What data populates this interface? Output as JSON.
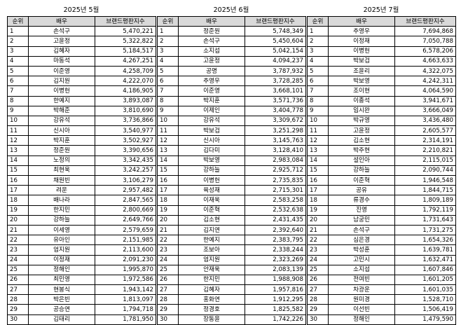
{
  "headers": {
    "rank": "순위",
    "actor": "배우",
    "score": "브랜드평판지수"
  },
  "months": [
    {
      "title": "2025년 5월",
      "rows": [
        [
          "1",
          "손석구",
          "5,470,221"
        ],
        [
          "2",
          "고윤정",
          "5,322,822"
        ],
        [
          "3",
          "김혜자",
          "5,184,517"
        ],
        [
          "4",
          "마동석",
          "4,267,251"
        ],
        [
          "5",
          "이준영",
          "4,258,709"
        ],
        [
          "6",
          "김지원",
          "4,222,070"
        ],
        [
          "7",
          "이병헌",
          "4,186,905"
        ],
        [
          "8",
          "한예지",
          "3,893,087"
        ],
        [
          "9",
          "박해준",
          "3,810,690"
        ],
        [
          "10",
          "강유석",
          "3,736,866"
        ],
        [
          "11",
          "신시아",
          "3,540,977"
        ],
        [
          "12",
          "박지훈",
          "3,502,927"
        ],
        [
          "13",
          "정준원",
          "3,390,656"
        ],
        [
          "14",
          "노정의",
          "3,342,435"
        ],
        [
          "15",
          "최현욱",
          "3,242,257"
        ],
        [
          "16",
          "채원빈",
          "3,106,279"
        ],
        [
          "17",
          "려운",
          "2,957,482"
        ],
        [
          "18",
          "배나라",
          "2,847,565"
        ],
        [
          "19",
          "한지민",
          "2,800,669"
        ],
        [
          "20",
          "강하늘",
          "2,649,766"
        ],
        [
          "21",
          "이세영",
          "2,579,659"
        ],
        [
          "22",
          "유아인",
          "2,151,985"
        ],
        [
          "23",
          "엄지원",
          "2,113,600"
        ],
        [
          "24",
          "이정재",
          "2,091,230"
        ],
        [
          "25",
          "정해인",
          "1,995,870"
        ],
        [
          "26",
          "최민영",
          "1,972,586"
        ],
        [
          "27",
          "현봉식",
          "1,943,142"
        ],
        [
          "28",
          "박은빈",
          "1,813,097"
        ],
        [
          "29",
          "공승연",
          "1,794,718"
        ],
        [
          "30",
          "김태리",
          "1,781,950"
        ]
      ]
    },
    {
      "title": "2025년 6월",
      "rows": [
        [
          "1",
          "정준원",
          "5,748,349"
        ],
        [
          "2",
          "손석구",
          "5,450,604"
        ],
        [
          "3",
          "소지섭",
          "5,042,154"
        ],
        [
          "4",
          "고윤정",
          "4,094,237"
        ],
        [
          "5",
          "공명",
          "3,787,932"
        ],
        [
          "6",
          "추영우",
          "3,728,285"
        ],
        [
          "7",
          "이준영",
          "3,668,101"
        ],
        [
          "8",
          "박지훈",
          "3,571,736"
        ],
        [
          "9",
          "이제인",
          "3,404,778"
        ],
        [
          "10",
          "강유석",
          "3,309,672"
        ],
        [
          "11",
          "박보검",
          "3,251,298"
        ],
        [
          "12",
          "신시아",
          "3,145,763"
        ],
        [
          "13",
          "김다미",
          "3,128,410"
        ],
        [
          "14",
          "박보영",
          "2,983,084"
        ],
        [
          "15",
          "강하늘",
          "2,925,712"
        ],
        [
          "16",
          "이병헌",
          "2,735,835"
        ],
        [
          "17",
          "육성재",
          "2,715,301"
        ],
        [
          "18",
          "이재욱",
          "2,583,258"
        ],
        [
          "19",
          "이준혁",
          "2,532,638"
        ],
        [
          "20",
          "김소현",
          "2,431,435"
        ],
        [
          "21",
          "김지연",
          "2,392,640"
        ],
        [
          "22",
          "한예지",
          "2,383,795"
        ],
        [
          "23",
          "조보아",
          "2,338,244"
        ],
        [
          "24",
          "엄지원",
          "2,323,269"
        ],
        [
          "25",
          "안재욱",
          "2,083,139"
        ],
        [
          "26",
          "한지민",
          "1,988,908"
        ],
        [
          "27",
          "김혜자",
          "1,957,816"
        ],
        [
          "28",
          "홍화연",
          "1,912,295"
        ],
        [
          "29",
          "정경호",
          "1,825,582"
        ],
        [
          "30",
          "장동윤",
          "1,742,226"
        ]
      ]
    },
    {
      "title": "2025년 7월",
      "rows": [
        [
          "1",
          "추영우",
          "7,694,868"
        ],
        [
          "2",
          "이정재",
          "7,050,788"
        ],
        [
          "3",
          "이병헌",
          "6,578,206"
        ],
        [
          "4",
          "박보검",
          "4,663,633"
        ],
        [
          "5",
          "조윤리",
          "4,322,075"
        ],
        [
          "6",
          "박보영",
          "4,242,311"
        ],
        [
          "7",
          "조이현",
          "4,064,590"
        ],
        [
          "8",
          "이종석",
          "3,941,671"
        ],
        [
          "9",
          "임시완",
          "3,666,049"
        ],
        [
          "10",
          "박규영",
          "3,436,480"
        ],
        [
          "11",
          "고윤정",
          "2,605,577"
        ],
        [
          "12",
          "김소현",
          "2,314,191"
        ],
        [
          "13",
          "박주현",
          "2,210,821"
        ],
        [
          "14",
          "설인아",
          "2,115,015"
        ],
        [
          "15",
          "강하늘",
          "2,090,744"
        ],
        [
          "16",
          "이준혁",
          "1,946,548"
        ],
        [
          "17",
          "공유",
          "1,844,715"
        ],
        [
          "18",
          "류경수",
          "1,809,189"
        ],
        [
          "19",
          "진영",
          "1,792,119"
        ],
        [
          "20",
          "남궁민",
          "1,731,643"
        ],
        [
          "21",
          "손석구",
          "1,731,275"
        ],
        [
          "22",
          "심은경",
          "1,654,326"
        ],
        [
          "23",
          "박성훈",
          "1,639,781"
        ],
        [
          "24",
          "고민시",
          "1,632,471"
        ],
        [
          "25",
          "소지섭",
          "1,607,846"
        ],
        [
          "26",
          "전여빈",
          "1,601,205"
        ],
        [
          "27",
          "차광운",
          "1,601,035"
        ],
        [
          "28",
          "원미경",
          "1,528,710"
        ],
        [
          "29",
          "이선빈",
          "1,506,419"
        ],
        [
          "30",
          "정해인",
          "1,479,590"
        ]
      ]
    }
  ]
}
